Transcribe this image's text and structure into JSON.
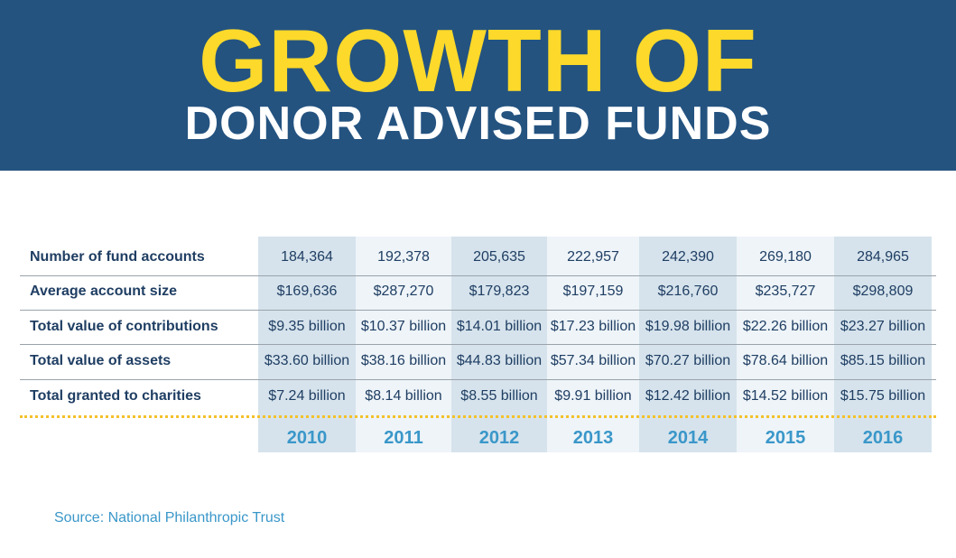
{
  "header": {
    "title_line1": "GROWTH OF",
    "title_line2": "DONOR ADVISED FUNDS"
  },
  "chart_data": {
    "type": "table",
    "columns": [
      "2010",
      "2011",
      "2012",
      "2013",
      "2014",
      "2015",
      "2016"
    ],
    "rows": [
      {
        "label": "Number of fund accounts",
        "values": [
          "184,364",
          "192,378",
          "205,635",
          "222,957",
          "242,390",
          "269,180",
          "284,965"
        ]
      },
      {
        "label": "Average account size",
        "values": [
          "$169,636",
          "$287,270",
          "$179,823",
          "$197,159",
          "$216,760",
          "$235,727",
          "$298,809"
        ]
      },
      {
        "label": "Total value of contributions",
        "values": [
          "$9.35 billion",
          "$10.37 billion",
          "$14.01 billion",
          "$17.23 billion",
          "$19.98 billion",
          "$22.26 billion",
          "$23.27 billion"
        ]
      },
      {
        "label": "Total value of assets",
        "values": [
          "$33.60 billion",
          "$38.16 billion",
          "$44.83 billion",
          "$57.34 billion",
          "$70.27 billion",
          "$78.64 billion",
          "$85.15 billion"
        ]
      },
      {
        "label": "Total granted to charities",
        "values": [
          "$7.24 billion",
          "$8.14 billion",
          "$8.55 billion",
          "$9.91 billion",
          "$12.42 billion",
          "$14.52 billion",
          "$15.75 billion"
        ]
      }
    ]
  },
  "footer": {
    "source": "Source: National Philanthropic Trust"
  },
  "colors": {
    "banner": "#245380",
    "title_accent": "#fcd92a",
    "year_text": "#3a97c9",
    "divider_dotted": "#f3c12b"
  }
}
